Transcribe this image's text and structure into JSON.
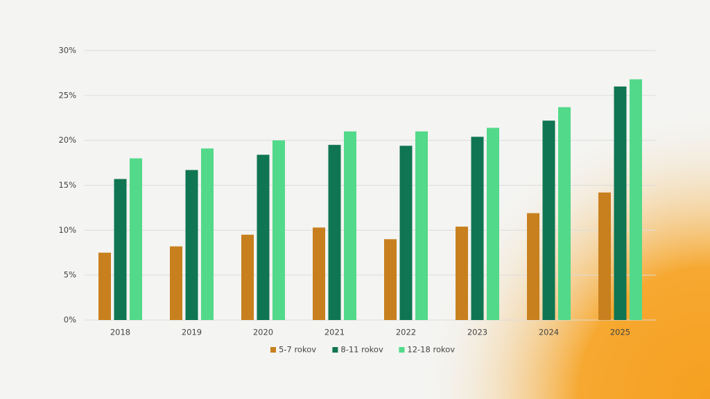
{
  "chart_data": {
    "type": "bar",
    "categories": [
      "2018",
      "2019",
      "2020",
      "2021",
      "2022",
      "2023",
      "2024",
      "2025"
    ],
    "series": [
      {
        "name": "5-7 rokov",
        "color": "#c8801e",
        "values": [
          7.5,
          8.2,
          9.5,
          10.3,
          9.0,
          10.4,
          11.9,
          14.2
        ]
      },
      {
        "name": "8-11 rokov",
        "color": "#0f7552",
        "values": [
          15.7,
          16.7,
          18.4,
          19.5,
          19.4,
          20.4,
          22.2,
          26.0
        ]
      },
      {
        "name": "12-18 rokov",
        "color": "#52d98a",
        "values": [
          18.0,
          19.1,
          20.0,
          21.0,
          21.0,
          21.4,
          23.7,
          26.8
        ]
      }
    ],
    "ylim": [
      0,
      30
    ],
    "yticks": [
      {
        "value": 0,
        "label": "0%"
      },
      {
        "value": 5,
        "label": "5%"
      },
      {
        "value": 10,
        "label": "10%"
      },
      {
        "value": 15,
        "label": "15%"
      },
      {
        "value": 20,
        "label": "20%"
      },
      {
        "value": 25,
        "label": "25%"
      },
      {
        "value": 30,
        "label": "30%"
      }
    ],
    "grid": true,
    "legend": "bottom"
  }
}
